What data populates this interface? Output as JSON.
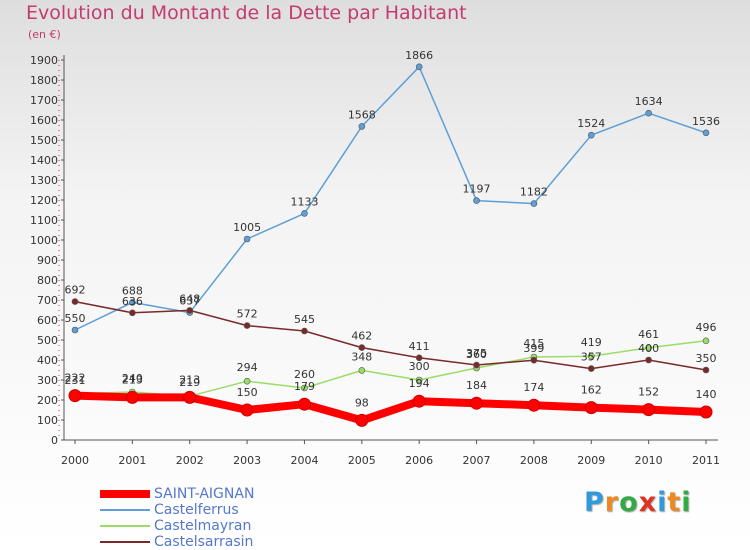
{
  "chart_data": {
    "type": "line",
    "title": "Evolution du Montant de la Dette par Habitant",
    "subtitle": "(en €)",
    "categories": [
      "2000",
      "2001",
      "2002",
      "2003",
      "2004",
      "2005",
      "2006",
      "2007",
      "2008",
      "2009",
      "2010",
      "2011"
    ],
    "ylim": [
      0,
      1900
    ],
    "yticks": [
      0,
      100,
      200,
      300,
      400,
      500,
      600,
      700,
      800,
      900,
      1000,
      1100,
      1200,
      1300,
      1400,
      1500,
      1600,
      1700,
      1800,
      1900
    ],
    "grid": false,
    "legend_position": "bottom-left",
    "series": [
      {
        "name": "SAINT-AIGNAN",
        "color": "#ff0000",
        "values": [
          222,
          213,
          213,
          150,
          179,
          98,
          194,
          184,
          174,
          162,
          152,
          140
        ]
      },
      {
        "name": "Castelferrus",
        "color": "#5d9fd6",
        "values": [
          550,
          688,
          637,
          1005,
          1133,
          1568,
          1866,
          1197,
          1182,
          1524,
          1634,
          1536
        ]
      },
      {
        "name": "Castelmayran",
        "color": "#99dd66",
        "values": [
          231,
          240,
          219,
          294,
          260,
          348,
          300,
          360,
          415,
          419,
          461,
          496
        ]
      },
      {
        "name": "Castelsarrasin",
        "color": "#7a2a2a",
        "values": [
          692,
          636,
          648,
          572,
          545,
          462,
          411,
          375,
          399,
          357,
          400,
          350
        ]
      }
    ]
  },
  "logo": {
    "text": "Proxiti",
    "letters": [
      "P",
      "r",
      "o",
      "x",
      "i",
      "t",
      "i"
    ],
    "colors": [
      "#3399dd",
      "#ee8822",
      "#33aa44",
      "#dd3322",
      "#3399dd",
      "#ee8822",
      "#33aa44"
    ]
  }
}
